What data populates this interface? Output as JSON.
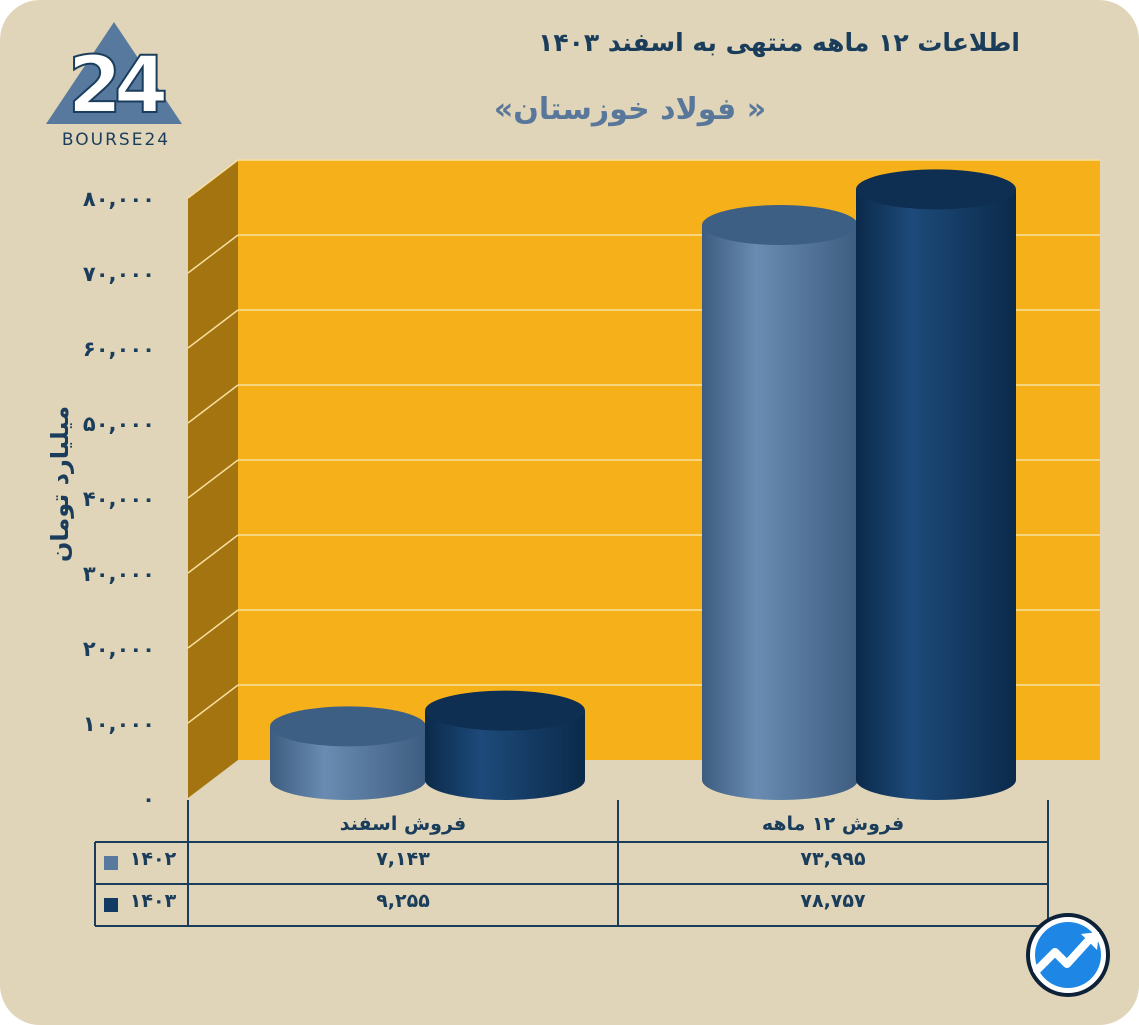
{
  "header": {
    "title": "اطلاعات ۱۲ ماهه منتهی به اسفند ۱۴۰۳",
    "subtitle": "« فولاد خوزستان»"
  },
  "logo": {
    "text": "BOURSE24",
    "mark": "24",
    "mark_icon": "triangle-24-logo-icon"
  },
  "badge": {
    "icon": "trend-arrow-badge-icon"
  },
  "colors": {
    "background": "#e0d5b9",
    "plot_back": "#f6b11a",
    "plot_side": "#a3740f",
    "series_1402": "#58799e",
    "series_1403": "#123a63",
    "text": "#1b3d5c"
  },
  "chart_data": {
    "type": "bar",
    "style": "3d-cylinder",
    "title": "اطلاعات ۱۲ ماهه منتهی به اسفند ۱۴۰۳",
    "subtitle": "« فولاد خوزستان»",
    "ylabel": "میلیارد تومان",
    "xlabel": "",
    "ylim": [
      0,
      80000
    ],
    "yticks": [
      0,
      10000,
      20000,
      30000,
      40000,
      50000,
      60000,
      70000,
      80000
    ],
    "ytick_labels": [
      "۰",
      "۱۰,۰۰۰",
      "۲۰,۰۰۰",
      "۳۰,۰۰۰",
      "۴۰,۰۰۰",
      "۵۰,۰۰۰",
      "۶۰,۰۰۰",
      "۷۰,۰۰۰",
      "۸۰,۰۰۰"
    ],
    "grid": true,
    "categories": [
      "فروش اسفند",
      "فروش ۱۲ ماهه"
    ],
    "series": [
      {
        "name": "۱۴۰۲",
        "values": [
          7143,
          73995
        ],
        "labels": [
          "۷,۱۴۳",
          "۷۳,۹۹۵"
        ]
      },
      {
        "name": "۱۴۰۳",
        "values": [
          9255,
          78757
        ],
        "labels": [
          "۹,۲۵۵",
          "۷۸,۷۵۷"
        ]
      }
    ],
    "legend": "data-table-bottom-left"
  }
}
